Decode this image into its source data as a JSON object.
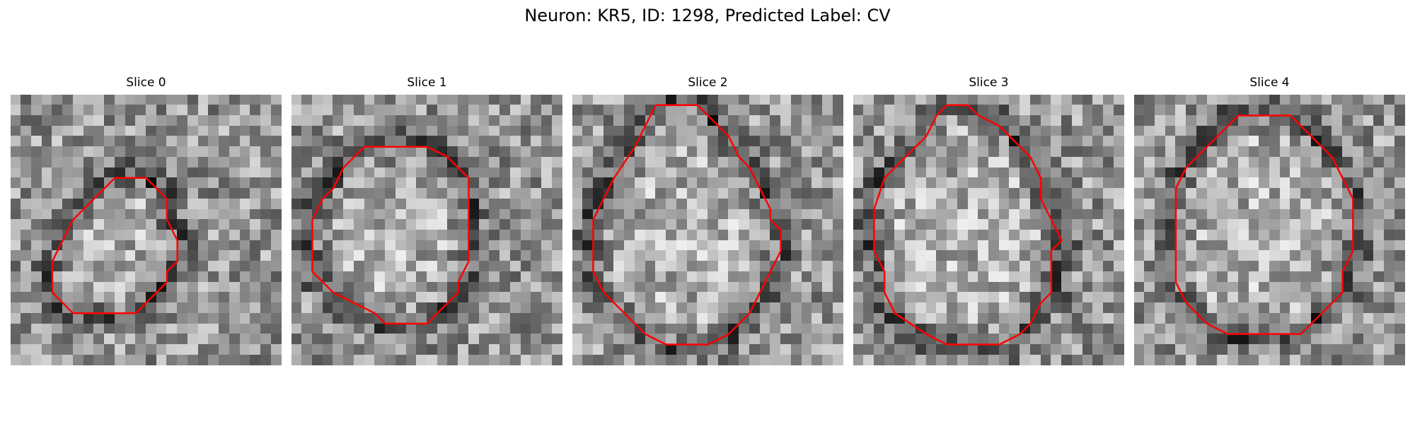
{
  "figure": {
    "title": "Neuron: KR5, ID: 1298, Predicted Label: CV"
  },
  "panels": [
    {
      "title": "Slice 0",
      "contour_color": "#ff0000",
      "contour": [
        [
          10,
          8
        ],
        [
          13,
          8
        ],
        [
          14,
          9
        ],
        [
          15,
          10
        ],
        [
          15,
          12
        ],
        [
          16,
          14
        ],
        [
          16,
          16
        ],
        [
          15,
          17
        ],
        [
          15,
          18
        ],
        [
          14,
          19
        ],
        [
          13,
          20
        ],
        [
          12,
          21
        ],
        [
          9,
          21
        ],
        [
          6,
          21
        ],
        [
          5,
          20
        ],
        [
          4,
          19
        ],
        [
          4,
          16
        ],
        [
          5,
          14
        ],
        [
          6,
          12
        ],
        [
          8,
          10
        ]
      ]
    },
    {
      "title": "Slice 1",
      "contour_color": "#ff0000",
      "contour": [
        [
          7,
          5
        ],
        [
          13,
          5
        ],
        [
          15,
          6
        ],
        [
          16,
          7
        ],
        [
          17,
          8
        ],
        [
          17,
          11
        ],
        [
          17,
          16
        ],
        [
          16,
          18
        ],
        [
          16,
          19
        ],
        [
          15,
          20
        ],
        [
          14,
          21
        ],
        [
          13,
          22
        ],
        [
          9,
          22
        ],
        [
          8,
          21
        ],
        [
          6,
          20
        ],
        [
          4,
          19
        ],
        [
          3,
          18
        ],
        [
          2,
          17
        ],
        [
          2,
          12
        ],
        [
          3,
          10
        ],
        [
          4,
          9
        ],
        [
          5,
          7
        ]
      ]
    },
    {
      "title": "Slice 2",
      "contour_color": "#ff0000",
      "contour": [
        [
          8,
          1
        ],
        [
          12,
          1
        ],
        [
          13,
          2
        ],
        [
          14,
          3
        ],
        [
          15,
          4
        ],
        [
          16,
          6
        ],
        [
          17,
          7
        ],
        [
          18,
          9
        ],
        [
          19,
          11
        ],
        [
          19,
          12
        ],
        [
          20,
          13
        ],
        [
          20,
          15
        ],
        [
          19,
          17
        ],
        [
          18,
          19
        ],
        [
          17,
          21
        ],
        [
          16,
          22
        ],
        [
          15,
          23
        ],
        [
          13,
          24
        ],
        [
          9,
          24
        ],
        [
          7,
          23
        ],
        [
          5,
          21
        ],
        [
          3,
          19
        ],
        [
          2,
          17
        ],
        [
          2,
          15
        ],
        [
          2,
          12
        ],
        [
          3,
          10
        ],
        [
          4,
          8
        ],
        [
          6,
          5
        ]
      ]
    },
    {
      "title": "Slice 3",
      "contour_color": "#ff0000",
      "contour": [
        [
          9,
          1
        ],
        [
          11,
          1
        ],
        [
          12,
          2
        ],
        [
          14,
          3
        ],
        [
          15,
          4
        ],
        [
          16,
          5
        ],
        [
          17,
          6
        ],
        [
          18,
          8
        ],
        [
          18,
          10
        ],
        [
          19,
          12
        ],
        [
          20,
          14
        ],
        [
          19,
          15
        ],
        [
          19,
          19
        ],
        [
          18,
          20
        ],
        [
          17,
          22
        ],
        [
          16,
          23
        ],
        [
          14,
          24
        ],
        [
          9,
          24
        ],
        [
          7,
          23
        ],
        [
          4,
          21
        ],
        [
          3,
          19
        ],
        [
          3,
          17
        ],
        [
          2,
          15
        ],
        [
          2,
          13
        ],
        [
          2,
          11
        ],
        [
          3,
          8
        ],
        [
          5,
          6
        ],
        [
          7,
          4
        ],
        [
          8,
          2
        ]
      ]
    },
    {
      "title": "Slice 4",
      "contour_color": "#ff0000",
      "contour": [
        [
          10,
          2
        ],
        [
          15,
          2
        ],
        [
          16,
          3
        ],
        [
          17,
          4
        ],
        [
          19,
          6
        ],
        [
          20,
          8
        ],
        [
          21,
          10
        ],
        [
          21,
          12
        ],
        [
          21,
          15
        ],
        [
          20,
          17
        ],
        [
          20,
          19
        ],
        [
          18,
          21
        ],
        [
          16,
          23
        ],
        [
          14,
          23
        ],
        [
          9,
          23
        ],
        [
          7,
          22
        ],
        [
          5,
          20
        ],
        [
          4,
          18
        ],
        [
          4,
          15
        ],
        [
          4,
          12
        ],
        [
          4,
          9
        ],
        [
          5,
          7
        ],
        [
          7,
          5
        ],
        [
          9,
          3
        ]
      ]
    }
  ]
}
